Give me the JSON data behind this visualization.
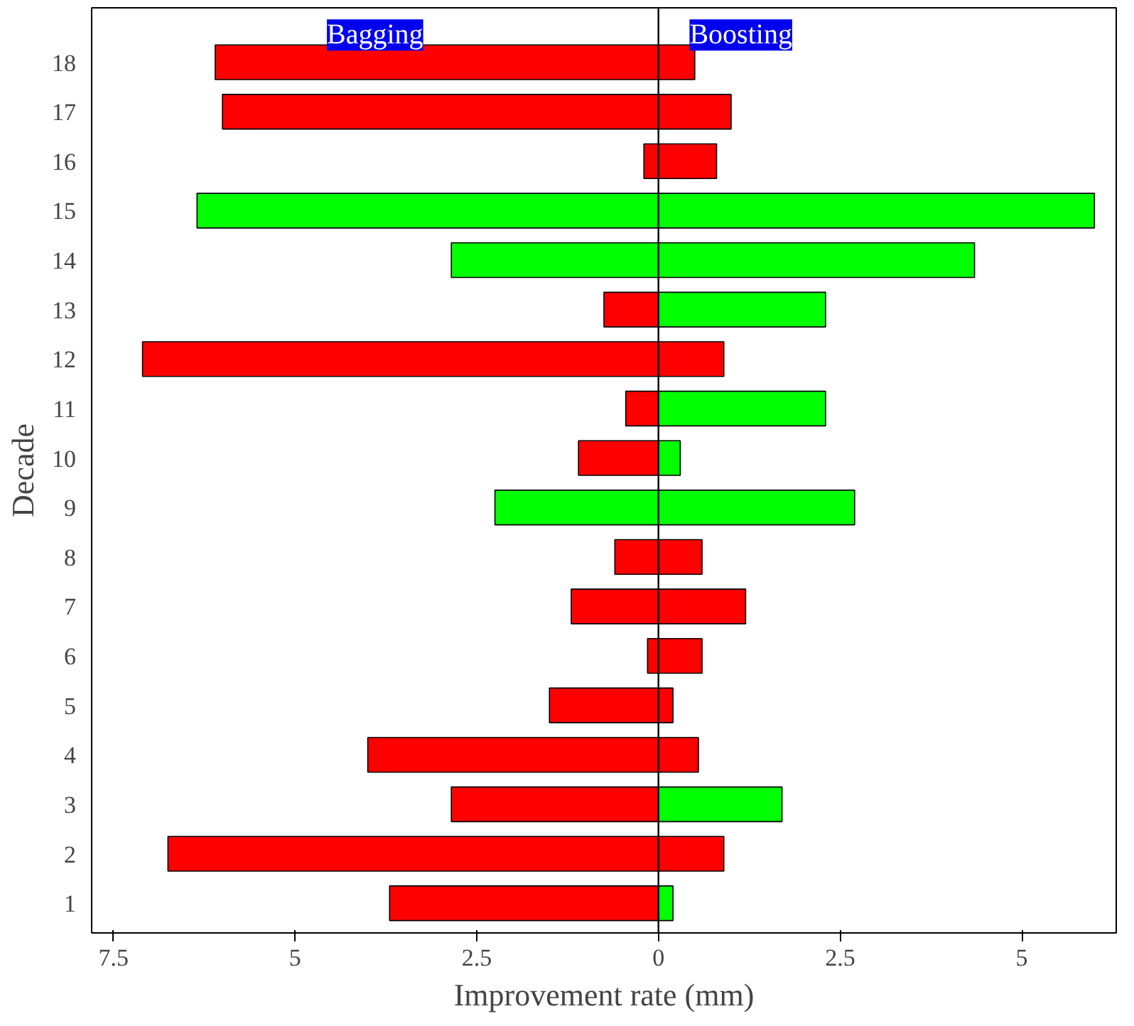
{
  "chart_data": {
    "type": "bar",
    "orientation": "horizontal",
    "xlabel": "Improvement rate (mm)",
    "ylabel": "Decade",
    "categories": [
      "18",
      "17",
      "16",
      "15",
      "14",
      "13",
      "12",
      "11",
      "10",
      "9",
      "8",
      "7",
      "6",
      "5",
      "4",
      "3",
      "2",
      "1"
    ],
    "series": [
      {
        "name": "Bagging",
        "values": [
          -6.1,
          -6.0,
          -0.2,
          -6.35,
          -2.85,
          -0.75,
          -7.1,
          -0.45,
          -1.1,
          -2.25,
          -0.6,
          -1.2,
          -0.15,
          -1.5,
          -4.0,
          -2.85,
          -6.75,
          -3.7
        ],
        "colors": [
          "#ff0000",
          "#ff0000",
          "#ff0000",
          "#00ff00",
          "#00ff00",
          "#ff0000",
          "#ff0000",
          "#ff0000",
          "#ff0000",
          "#00ff00",
          "#ff0000",
          "#ff0000",
          "#ff0000",
          "#ff0000",
          "#ff0000",
          "#ff0000",
          "#ff0000",
          "#ff0000"
        ]
      },
      {
        "name": "Boosting",
        "values": [
          0.5,
          1.0,
          0.8,
          6.0,
          4.35,
          2.3,
          0.9,
          2.3,
          0.3,
          2.7,
          0.6,
          1.2,
          0.6,
          0.2,
          0.55,
          1.7,
          0.9,
          0.2
        ],
        "colors": [
          "#ff0000",
          "#ff0000",
          "#ff0000",
          "#00ff00",
          "#00ff00",
          "#00ff00",
          "#ff0000",
          "#00ff00",
          "#00ff00",
          "#00ff00",
          "#ff0000",
          "#ff0000",
          "#ff0000",
          "#ff0000",
          "#ff0000",
          "#00ff00",
          "#ff0000",
          "#00ff00"
        ]
      }
    ],
    "xlim": [
      -7.8,
      6.3
    ],
    "xticks": [
      {
        "value": -7.5,
        "label": "7.5"
      },
      {
        "value": -5,
        "label": "5"
      },
      {
        "value": -2.5,
        "label": "2.5"
      },
      0,
      {
        "value": 2.5,
        "label": "2.5"
      },
      {
        "value": 5,
        "label": "5"
      }
    ],
    "ref_lines": [
      {
        "axis": "x",
        "value": 0,
        "label": null
      }
    ],
    "grid": false,
    "stacked": true
  }
}
